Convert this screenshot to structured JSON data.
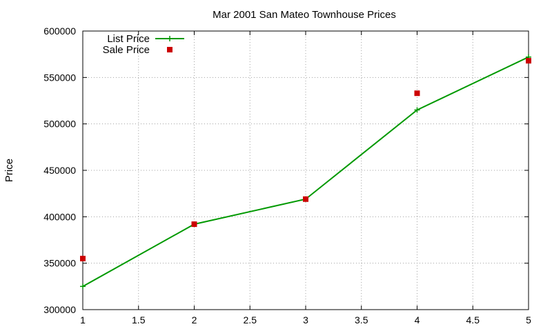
{
  "chart_data": {
    "type": "line",
    "title": "Mar 2001 San Mateo Townhouse Prices",
    "xlabel": "",
    "ylabel": "Price",
    "xlim": [
      1,
      5
    ],
    "ylim": [
      300000,
      600000
    ],
    "x_ticks": [
      "1",
      "1.5",
      "2",
      "2.5",
      "3",
      "3.5",
      "4",
      "4.5",
      "5"
    ],
    "y_ticks": [
      "300000",
      "350000",
      "400000",
      "450000",
      "500000",
      "550000",
      "600000"
    ],
    "grid": true,
    "legend_position": "top-left",
    "series": [
      {
        "name": "List Price",
        "style": "line+points",
        "color": "#009900",
        "x": [
          1,
          2,
          3,
          4,
          5
        ],
        "values": [
          325000,
          392000,
          419000,
          515000,
          572000
        ]
      },
      {
        "name": "Sale Price",
        "style": "points",
        "color": "#cc0000",
        "x": [
          1,
          2,
          3,
          4,
          5
        ],
        "values": [
          355000,
          392000,
          419000,
          533000,
          568000
        ]
      }
    ]
  }
}
